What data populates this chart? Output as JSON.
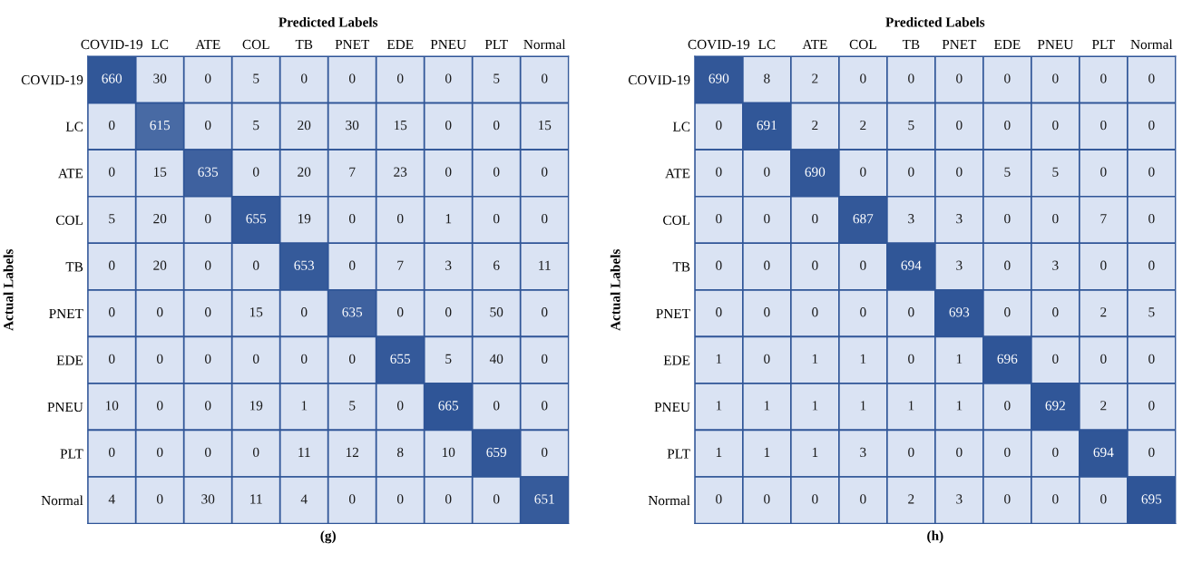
{
  "chart_data": [
    {
      "type": "heatmap",
      "xlabel": "Predicted Labels",
      "ylabel": "Actual Labels",
      "annotations": [
        "(g)"
      ],
      "data_labels": true,
      "categories": [
        "COVID-19",
        "LC",
        "ATE",
        "COL",
        "TB",
        "PNET",
        "EDE",
        "PNEU",
        "PLT",
        "Normal"
      ],
      "y_categories": [
        "COVID-19",
        "LC",
        "ATE",
        "COL",
        "TB",
        "PNET",
        "EDE",
        "PNEU",
        "PLT",
        "Normal"
      ],
      "cells": [
        [
          660,
          30,
          0,
          5,
          0,
          0,
          0,
          0,
          5,
          0
        ],
        [
          0,
          615,
          0,
          5,
          20,
          30,
          15,
          0,
          0,
          15
        ],
        [
          0,
          15,
          635,
          0,
          20,
          7,
          23,
          0,
          0,
          0
        ],
        [
          5,
          20,
          0,
          655,
          19,
          0,
          0,
          1,
          0,
          0
        ],
        [
          0,
          20,
          0,
          0,
          653,
          0,
          7,
          3,
          6,
          11
        ],
        [
          0,
          0,
          0,
          15,
          0,
          635,
          0,
          0,
          50,
          0
        ],
        [
          0,
          0,
          0,
          0,
          0,
          0,
          655,
          5,
          40,
          0
        ],
        [
          10,
          0,
          0,
          19,
          1,
          5,
          0,
          665,
          0,
          0
        ],
        [
          0,
          0,
          0,
          0,
          11,
          12,
          8,
          10,
          659,
          0
        ],
        [
          4,
          0,
          30,
          11,
          4,
          0,
          0,
          0,
          0,
          651
        ]
      ]
    },
    {
      "type": "heatmap",
      "xlabel": "Predicted Labels",
      "ylabel": "Actual Labels",
      "annotations": [
        "(h)"
      ],
      "data_labels": true,
      "categories": [
        "COVID-19",
        "LC",
        "ATE",
        "COL",
        "TB",
        "PNET",
        "EDE",
        "PNEU",
        "PLT",
        "Normal"
      ],
      "y_categories": [
        "COVID-19",
        "LC",
        "ATE",
        "COL",
        "TB",
        "PNET",
        "EDE",
        "PNEU",
        "PLT",
        "Normal"
      ],
      "cells": [
        [
          690,
          8,
          2,
          0,
          0,
          0,
          0,
          0,
          0,
          0
        ],
        [
          0,
          691,
          2,
          2,
          5,
          0,
          0,
          0,
          0,
          0
        ],
        [
          0,
          0,
          690,
          0,
          0,
          0,
          5,
          5,
          0,
          0
        ],
        [
          0,
          0,
          0,
          687,
          3,
          3,
          0,
          0,
          7,
          0
        ],
        [
          0,
          0,
          0,
          0,
          694,
          3,
          0,
          3,
          0,
          0
        ],
        [
          0,
          0,
          0,
          0,
          0,
          693,
          0,
          0,
          2,
          5
        ],
        [
          1,
          0,
          1,
          1,
          0,
          1,
          696,
          0,
          0,
          0
        ],
        [
          1,
          1,
          1,
          1,
          1,
          1,
          0,
          692,
          2,
          0
        ],
        [
          1,
          1,
          1,
          3,
          0,
          0,
          0,
          0,
          694,
          0
        ],
        [
          0,
          0,
          0,
          0,
          2,
          3,
          0,
          0,
          0,
          695
        ]
      ]
    }
  ]
}
